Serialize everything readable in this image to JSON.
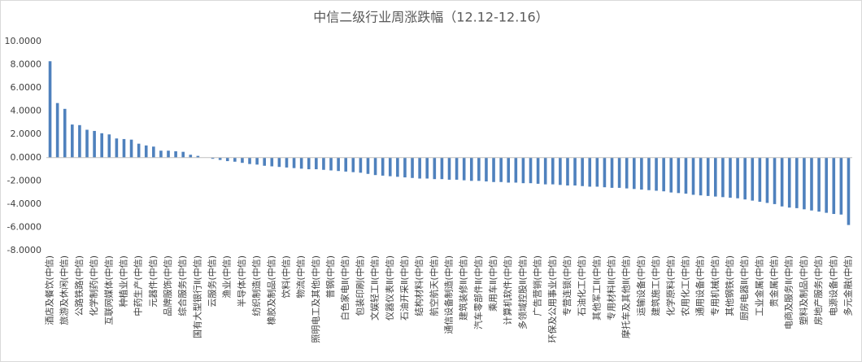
{
  "chart_data": {
    "type": "bar",
    "title": "中信二级行业周涨跌幅（12.12-12.16）",
    "categories": [
      "酒店及餐饮(中信)",
      null,
      "旅游及休闲(中信)",
      null,
      "公路铁路(中信)",
      null,
      "化学制药(中信)",
      null,
      "互联网媒体(中信)",
      null,
      "种植业(中信)",
      null,
      "中药生产(中信)",
      null,
      "元器件(中信)",
      null,
      "品牌服饰(中信)",
      null,
      "综合服务(中信)",
      null,
      "国有大型银行Ⅱ(中信)",
      null,
      "云服务(中信)",
      null,
      "渔业(中信)",
      null,
      "半导体(中信)",
      null,
      "纺织制造(中信)",
      null,
      "橡胶及制品(中信)",
      null,
      "饮料(中信)",
      null,
      "物流(中信)",
      null,
      "照明电工及其他(中信)",
      null,
      "普钢(中信)",
      null,
      "白色家电Ⅱ(中信)",
      null,
      "包装印刷(中信)",
      null,
      "文娱轻工Ⅱ(中信)",
      null,
      "仪器仪表Ⅱ(中信)",
      null,
      "石油开采Ⅱ(中信)",
      null,
      "结构材料(中信)",
      null,
      "航空航天(中信)",
      null,
      "通信设备制造(中信)",
      null,
      "建筑装修Ⅱ(中信)",
      null,
      "汽车零部件Ⅱ(中信)",
      null,
      "乘用车Ⅱ(中信)",
      null,
      "计算机软件(中信)",
      null,
      "多领域控股Ⅱ(中信)",
      null,
      "广告营销(中信)",
      null,
      "环保及公用事业(中信)",
      null,
      "专营连锁(中信)",
      null,
      "石油化工(中信)",
      null,
      "其他军工Ⅱ(中信)",
      null,
      "专用材料Ⅱ(中信)",
      null,
      "摩托车及其他Ⅱ(中信)",
      null,
      "运输设备(中信)",
      null,
      "建筑施工(中信)",
      null,
      "化学原料(中信)",
      null,
      "农用化工(中信)",
      null,
      "通用设备(中信)",
      null,
      "专用机械(中信)",
      null,
      "其他钢铁(中信)",
      null,
      "厨房电器Ⅱ(中信)",
      null,
      "工业金属(中信)",
      null,
      "贵金属(中信)",
      null,
      "电商及服务Ⅱ(中信)",
      null,
      "塑料及制品(中信)",
      null,
      "房地产服务(中信)",
      null,
      "电源设备(中信)",
      null,
      "多元金融(中信)"
    ],
    "values": [
      8.3,
      4.7,
      4.2,
      2.85,
      2.8,
      2.4,
      2.3,
      2.1,
      2.0,
      1.65,
      1.6,
      1.55,
      1.2,
      1.05,
      0.95,
      0.6,
      0.6,
      0.55,
      0.5,
      0.25,
      0.15,
      0.0,
      -0.1,
      -0.2,
      -0.3,
      -0.35,
      -0.45,
      -0.55,
      -0.6,
      -0.7,
      -0.75,
      -0.8,
      -0.85,
      -0.9,
      -0.95,
      -1.0,
      -1.0,
      -1.05,
      -1.1,
      -1.15,
      -1.2,
      -1.25,
      -1.3,
      -1.4,
      -1.5,
      -1.55,
      -1.6,
      -1.65,
      -1.7,
      -1.75,
      -1.8,
      -1.8,
      -1.85,
      -1.85,
      -1.9,
      -1.9,
      -1.95,
      -2.0,
      -2.0,
      -2.05,
      -2.1,
      -2.1,
      -2.15,
      -2.15,
      -2.2,
      -2.2,
      -2.25,
      -2.3,
      -2.3,
      -2.35,
      -2.4,
      -2.4,
      -2.45,
      -2.5,
      -2.5,
      -2.55,
      -2.6,
      -2.6,
      -2.65,
      -2.7,
      -2.75,
      -2.8,
      -2.85,
      -2.9,
      -3.0,
      -3.05,
      -3.1,
      -3.2,
      -3.25,
      -3.3,
      -3.35,
      -3.4,
      -3.45,
      -3.5,
      -3.6,
      -3.7,
      -3.8,
      -3.9,
      -4.0,
      -4.2,
      -4.3,
      -4.35,
      -4.45,
      -4.55,
      -4.65,
      -4.75,
      -4.85,
      -4.9,
      -5.8
    ],
    "color": "#4f81bd",
    "ylim": [
      -8,
      10
    ],
    "yticks": [
      {
        "value": -8,
        "label": "-8.0000"
      },
      {
        "value": -6,
        "label": "-6.0000"
      },
      {
        "value": -4,
        "label": "-4.0000"
      },
      {
        "value": -2,
        "label": "-2.0000"
      },
      {
        "value": 0,
        "label": "0.0000"
      },
      {
        "value": 2,
        "label": "2.0000"
      },
      {
        "value": 4,
        "label": "4.0000"
      },
      {
        "value": 6,
        "label": "6.0000"
      },
      {
        "value": 8,
        "label": "8.0000"
      },
      {
        "value": 10,
        "label": "10.0000"
      }
    ],
    "grid": false
  }
}
